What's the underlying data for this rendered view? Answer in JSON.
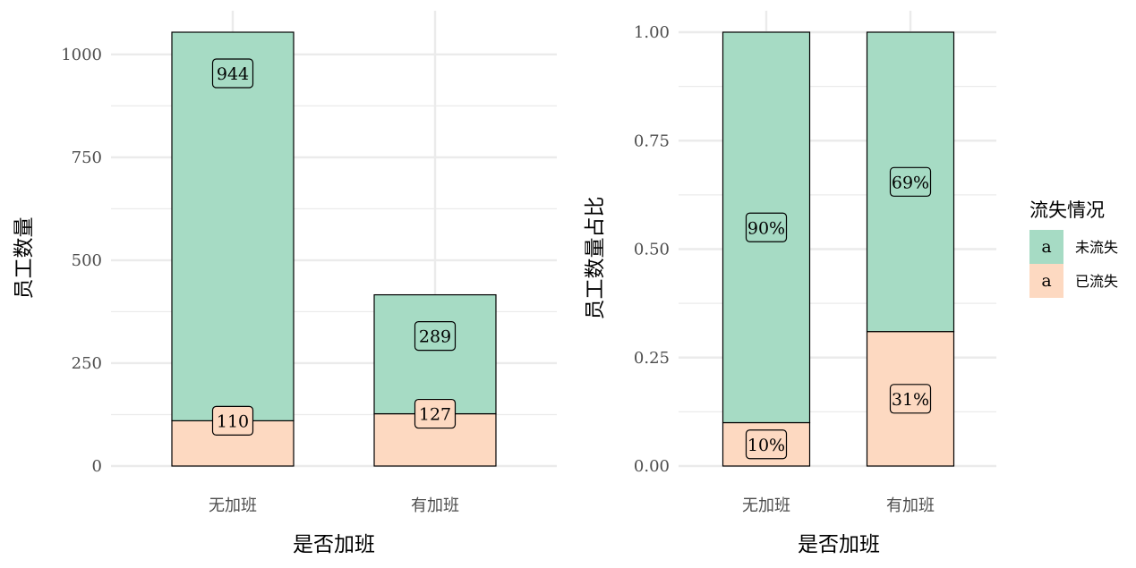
{
  "chart_data": [
    {
      "type": "bar",
      "stacked": true,
      "xlabel": "是否加班",
      "ylabel": "员工数量",
      "categories": [
        "无加班",
        "有加班"
      ],
      "series": [
        {
          "name": "已流失",
          "values": [
            110,
            127
          ],
          "labels": [
            "110",
            "127"
          ]
        },
        {
          "name": "未流失",
          "values": [
            944,
            289
          ],
          "labels": [
            "944",
            "289"
          ]
        }
      ],
      "ylim": [
        0,
        1054
      ],
      "yticks": [
        0,
        250,
        500,
        750,
        1000
      ],
      "ytick_labels": [
        "0",
        "250",
        "500",
        "750",
        "1000"
      ],
      "grid": true
    },
    {
      "type": "bar",
      "stacked": true,
      "normalized": true,
      "xlabel": "是否加班",
      "ylabel": "员工数量占比",
      "categories": [
        "无加班",
        "有加班"
      ],
      "series": [
        {
          "name": "已流失",
          "values": [
            0.1,
            0.31
          ],
          "labels": [
            "10%",
            "31%"
          ]
        },
        {
          "name": "未流失",
          "values": [
            0.9,
            0.69
          ],
          "labels": [
            "90%",
            "69%"
          ]
        }
      ],
      "ylim": [
        0,
        1
      ],
      "yticks": [
        0,
        0.25,
        0.5,
        0.75,
        1
      ],
      "ytick_labels": [
        "0.00",
        "0.25",
        "0.50",
        "0.75",
        "1.00"
      ],
      "grid": true
    }
  ],
  "legend": {
    "title": "流失情况",
    "placement": "right",
    "key_glyph": "a",
    "items": [
      {
        "name": "未流失",
        "color": "#a6dbc4"
      },
      {
        "name": "已流失",
        "color": "#fdd9c1"
      }
    ]
  },
  "colors": {
    "retained": "#a6dbc4",
    "attrited": "#fdd9c1",
    "grid": "#ebebeb"
  }
}
